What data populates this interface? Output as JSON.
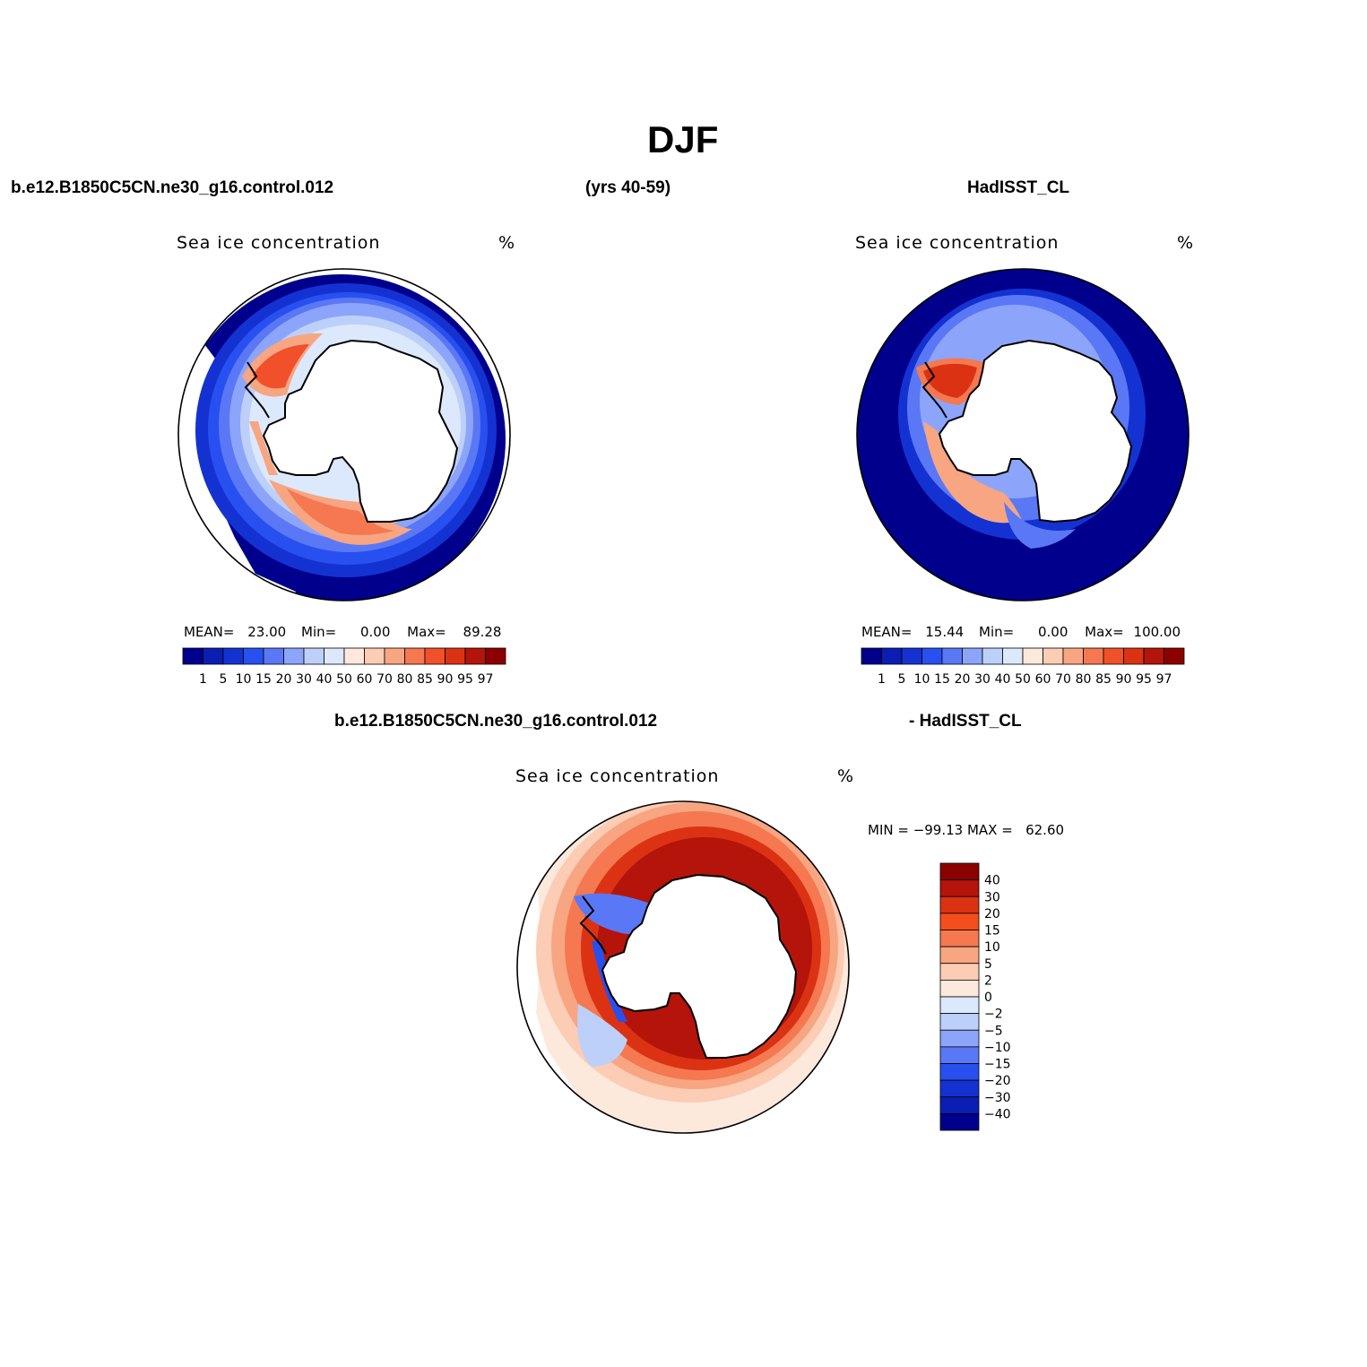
{
  "title": "DJF",
  "header": {
    "case_name": "b.e12.B1850C5CN.ne30_g16.control.012",
    "years": "(yrs 40-59)",
    "obs_name": "HadISST_CL",
    "diff_case": "b.e12.B1850C5CN.ne30_g16.control.012",
    "diff_obs": "- HadISST_CL"
  },
  "panels": {
    "model": {
      "variable": "Sea ice concentration",
      "units": "%",
      "stats": {
        "mean_label": "MEAN=",
        "mean": "23.00",
        "min_label": "Min=",
        "min": "0.00",
        "max_label": "Max=",
        "max": "89.28"
      }
    },
    "obs": {
      "variable": "Sea ice concentration",
      "units": "%",
      "stats": {
        "mean_label": "MEAN=",
        "mean": "15.44",
        "min_label": "Min=",
        "min": "0.00",
        "max_label": "Max=",
        "max": "100.00"
      }
    },
    "diff": {
      "variable": "Sea ice concentration",
      "units": "%",
      "minmax": "MIN = −99.13 MAX =   62.60"
    }
  },
  "colorbars": {
    "abs_levels": [
      "1",
      "5",
      "10",
      "15",
      "20",
      "30",
      "40",
      "50",
      "60",
      "70",
      "80",
      "85",
      "90",
      "95",
      "97"
    ],
    "abs_colors": [
      "#00008c",
      "#0a1eb4",
      "#1432d2",
      "#2850f0",
      "#5a78f5",
      "#8ca5fa",
      "#bcd0fa",
      "#dce8fc",
      "#fde8dc",
      "#fcccb4",
      "#f8a582",
      "#f57850",
      "#f0502a",
      "#dc3214",
      "#b4140a",
      "#8c0000"
    ],
    "diff_levels": [
      "40",
      "30",
      "20",
      "15",
      "10",
      "5",
      "2",
      "0",
      "−2",
      "−5",
      "−10",
      "−15",
      "−20",
      "−30",
      "−40"
    ],
    "diff_colors": [
      "#8c0000",
      "#b4140a",
      "#dc3214",
      "#f54e1e",
      "#f57850",
      "#f8a582",
      "#fcccb4",
      "#fde8dc",
      "#dce8fc",
      "#bcd0fa",
      "#8ca5fa",
      "#5a78f5",
      "#2850f0",
      "#1432d2",
      "#0a1eb4",
      "#00008c"
    ]
  }
}
